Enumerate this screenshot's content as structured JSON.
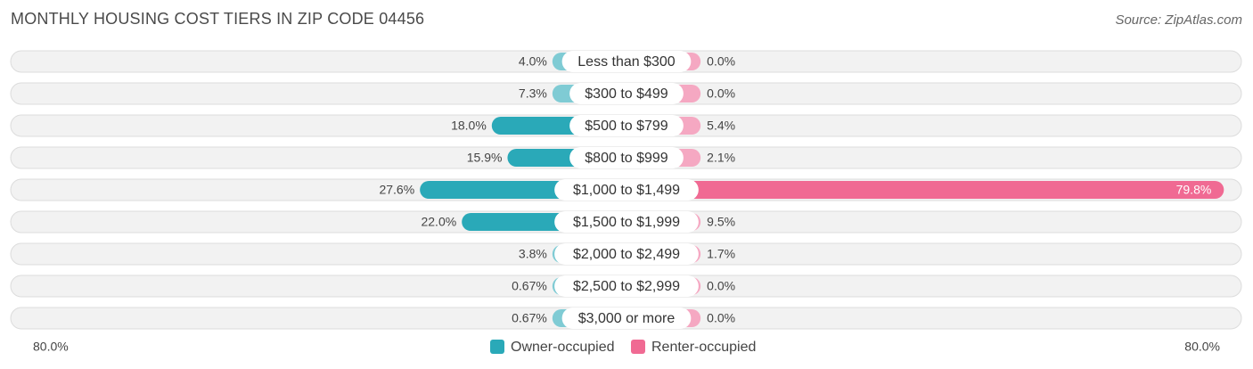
{
  "title": "MONTHLY HOUSING COST TIERS IN ZIP CODE 04456",
  "source": "Source: ZipAtlas.com",
  "colors": {
    "owner": "#2aa9b8",
    "owner_light": "#7fcbd4",
    "renter": "#f06a93",
    "renter_light": "#f5a8c2"
  },
  "chart_data": {
    "type": "bar",
    "orientation": "horizontal-diverging",
    "categories": [
      "Less than $300",
      "$300 to $499",
      "$500 to $799",
      "$800 to $999",
      "$1,000 to $1,499",
      "$1,500 to $1,999",
      "$2,000 to $2,499",
      "$2,500 to $2,999",
      "$3,000 or more"
    ],
    "series": [
      {
        "name": "Owner-occupied",
        "values": [
          4.0,
          7.3,
          18.0,
          15.9,
          27.6,
          22.0,
          3.8,
          0.67,
          0.67
        ],
        "labels": [
          "4.0%",
          "7.3%",
          "18.0%",
          "15.9%",
          "27.6%",
          "22.0%",
          "3.8%",
          "0.67%",
          "0.67%"
        ]
      },
      {
        "name": "Renter-occupied",
        "values": [
          0.0,
          0.0,
          5.4,
          2.1,
          79.8,
          9.5,
          1.7,
          0.0,
          0.0
        ],
        "labels": [
          "0.0%",
          "0.0%",
          "5.4%",
          "2.1%",
          "79.8%",
          "9.5%",
          "1.7%",
          "0.0%",
          "0.0%"
        ]
      }
    ],
    "axis": {
      "left_label": "80.0%",
      "right_label": "80.0%",
      "max": 80.0
    },
    "legend": {
      "placement": "bottom-center"
    }
  }
}
